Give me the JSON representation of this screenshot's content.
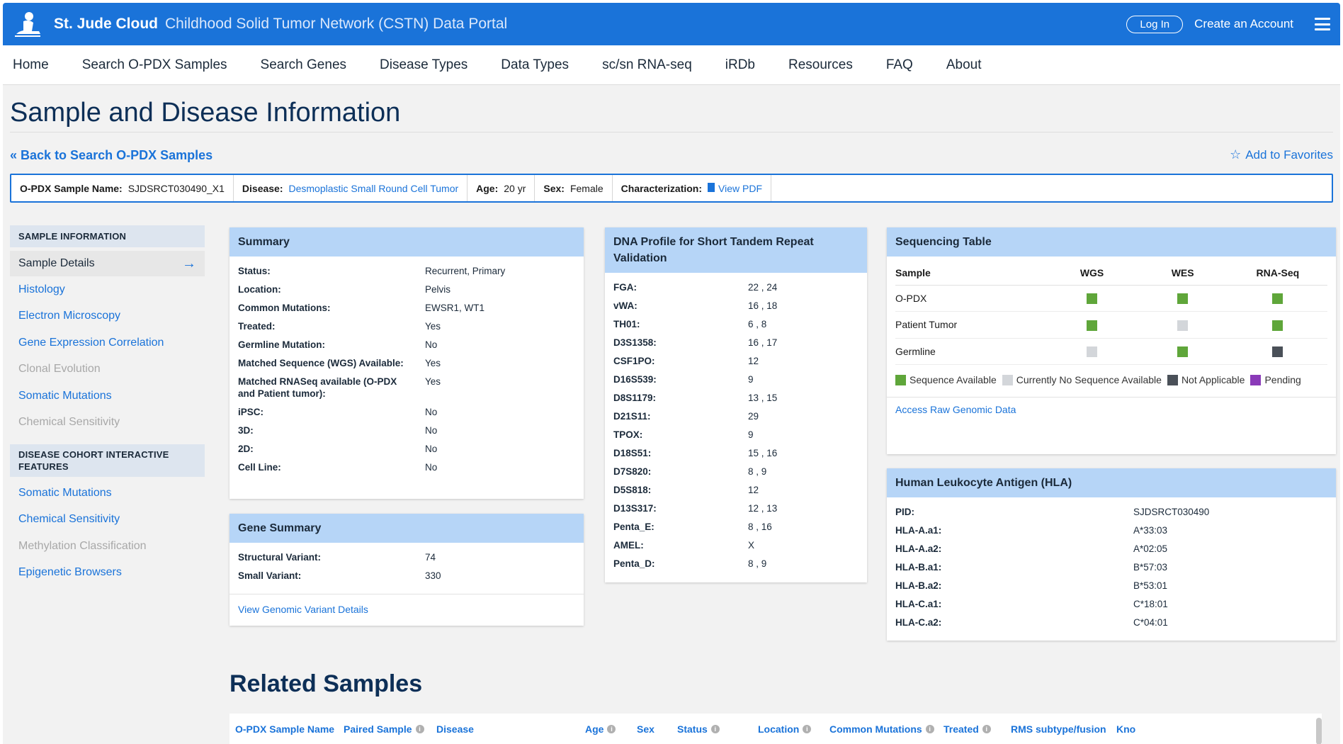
{
  "header": {
    "brand": "St. Jude Cloud",
    "subtitle": "Childhood Solid Tumor Network (CSTN) Data Portal",
    "login_label": "Log In",
    "create_account_label": "Create an Account",
    "brand_color": "#1a73d9"
  },
  "nav": [
    "Home",
    "Search O-PDX Samples",
    "Search Genes",
    "Disease Types",
    "Data Types",
    "sc/sn RNA-seq",
    "iRDb",
    "Resources",
    "FAQ",
    "About"
  ],
  "page": {
    "title": "Sample and Disease Information",
    "back_link": "Back to Search O-PDX Samples",
    "favorites_link": "Add to Favorites"
  },
  "infobar": {
    "sample_name_label": "O-PDX Sample Name:",
    "sample_name": "SJDSRCT030490_X1",
    "disease_label": "Disease:",
    "disease": "Desmoplastic Small Round Cell Tumor",
    "age_label": "Age:",
    "age": "20 yr",
    "sex_label": "Sex:",
    "sex": "Female",
    "characterization_label": "Characterization:",
    "characterization_link": "View PDF"
  },
  "sidebar": {
    "section1": "SAMPLE INFORMATION",
    "items1": [
      {
        "label": "Sample Details"
      },
      {
        "label": "Histology"
      },
      {
        "label": "Electron Microscopy"
      },
      {
        "label": "Gene Expression Correlation"
      },
      {
        "label": "Clonal Evolution"
      },
      {
        "label": "Somatic Mutations"
      },
      {
        "label": "Chemical Sensitivity"
      }
    ],
    "section2": "DISEASE COHORT INTERACTIVE FEATURES",
    "items2": [
      {
        "label": "Somatic Mutations"
      },
      {
        "label": "Chemical Sensitivity"
      },
      {
        "label": "Methylation Classification"
      },
      {
        "label": "Epigenetic Browsers"
      }
    ]
  },
  "summary": {
    "title": "Summary",
    "rows": [
      {
        "k": "Status:",
        "v": "Recurrent, Primary"
      },
      {
        "k": "Location:",
        "v": "Pelvis"
      },
      {
        "k": "Common Mutations:",
        "v": "EWSR1, WT1"
      },
      {
        "k": "Treated:",
        "v": "Yes"
      },
      {
        "k": "Germline Mutation:",
        "v": "No"
      },
      {
        "k": "Matched Sequence (WGS) Available:",
        "v": "Yes"
      },
      {
        "k": "Matched RNASeq available (O-PDX and Patient tumor):",
        "v": "Yes"
      },
      {
        "k": "iPSC:",
        "v": "No"
      },
      {
        "k": "3D:",
        "v": "No"
      },
      {
        "k": "2D:",
        "v": "No"
      },
      {
        "k": "Cell Line:",
        "v": "No"
      }
    ]
  },
  "gene_summary": {
    "title": "Gene Summary",
    "rows": [
      {
        "k": "Structural Variant:",
        "v": "74"
      },
      {
        "k": "Small Variant:",
        "v": "330"
      }
    ],
    "link": "View Genomic Variant Details"
  },
  "str_profile": {
    "title": "DNA Profile for Short Tandem Repeat Validation",
    "rows": [
      {
        "k": "FGA:",
        "v": "22 , 24"
      },
      {
        "k": "vWA:",
        "v": "16 , 18"
      },
      {
        "k": "TH01:",
        "v": "6 , 8"
      },
      {
        "k": "D3S1358:",
        "v": "16 , 17"
      },
      {
        "k": "CSF1PO:",
        "v": "12"
      },
      {
        "k": "D16S539:",
        "v": "9"
      },
      {
        "k": "D8S1179:",
        "v": "13 , 15"
      },
      {
        "k": "D21S11:",
        "v": "29"
      },
      {
        "k": "TPOX:",
        "v": "9"
      },
      {
        "k": "D18S51:",
        "v": "15 , 16"
      },
      {
        "k": "D7S820:",
        "v": "8 , 9"
      },
      {
        "k": "D5S818:",
        "v": "12"
      },
      {
        "k": "D13S317:",
        "v": "12 , 13"
      },
      {
        "k": "Penta_E:",
        "v": "8 , 16"
      },
      {
        "k": "AMEL:",
        "v": "X"
      },
      {
        "k": "Penta_D:",
        "v": "8 , 9"
      }
    ]
  },
  "sequencing": {
    "title": "Sequencing Table",
    "columns": [
      "Sample",
      "WGS",
      "WES",
      "RNA-Seq"
    ],
    "rows": [
      {
        "name": "O-PDX",
        "cells": [
          "available",
          "available",
          "available"
        ]
      },
      {
        "name": "Patient Tumor",
        "cells": [
          "available",
          "none",
          "available"
        ]
      },
      {
        "name": "Germline",
        "cells": [
          "none",
          "available",
          "na"
        ]
      }
    ],
    "status_colors": {
      "available": "#5fa63a",
      "none": "#d3d6da",
      "na": "#4a5058",
      "pending": "#8a3ab8"
    },
    "legend": [
      {
        "key": "available",
        "label": "Sequence Available"
      },
      {
        "key": "none",
        "label": "Currently No Sequence Available"
      },
      {
        "key": "na",
        "label": "Not Applicable"
      },
      {
        "key": "pending",
        "label": "Pending"
      }
    ],
    "link": "Access Raw Genomic Data"
  },
  "hla": {
    "title": "Human Leukocyte Antigen (HLA)",
    "rows": [
      {
        "k": "PID:",
        "v": "SJDSRCT030490"
      },
      {
        "k": "HLA-A.a1:",
        "v": "A*33:03"
      },
      {
        "k": "HLA-A.a2:",
        "v": "A*02:05"
      },
      {
        "k": "HLA-B.a1:",
        "v": "B*57:03"
      },
      {
        "k": "HLA-B.a2:",
        "v": "B*53:01"
      },
      {
        "k": "HLA-C.a1:",
        "v": "C*18:01"
      },
      {
        "k": "HLA-C.a2:",
        "v": "C*04:01"
      }
    ]
  },
  "related": {
    "title": "Related Samples",
    "columns": [
      {
        "label": "O-PDX Sample Name",
        "info": false
      },
      {
        "label": "Paired Sample",
        "info": true
      },
      {
        "label": "Disease",
        "info": false
      },
      {
        "label": "Age",
        "info": true
      },
      {
        "label": "Sex",
        "info": false
      },
      {
        "label": "Status",
        "info": true
      },
      {
        "label": "Location",
        "info": true
      },
      {
        "label": "Common Mutations",
        "info": true
      },
      {
        "label": "Treated",
        "info": true
      },
      {
        "label": "RMS subtype/fusion",
        "info": false
      },
      {
        "label": "Kno",
        "info": false
      }
    ]
  }
}
